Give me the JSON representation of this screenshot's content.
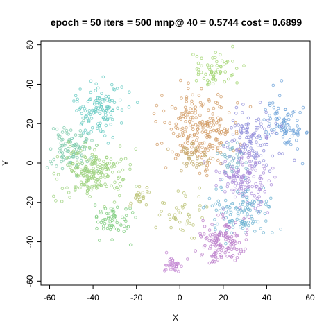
{
  "chart_data": {
    "type": "scatter",
    "title": "epoch = 50 iters = 500 mnp@ 40 = 0.5744 cost = 0.6899",
    "xlabel": "X",
    "ylabel": "Y",
    "xlim": [
      -64,
      60
    ],
    "ylim": [
      -62,
      62
    ],
    "xticks": [
      -60,
      -40,
      -20,
      0,
      20,
      40,
      60
    ],
    "yticks": [
      -60,
      -40,
      -20,
      0,
      20,
      40,
      60
    ],
    "grid": false,
    "legend": "none",
    "marker": "open circle",
    "clusters": [
      {
        "color": "#9ed36a",
        "cx": 15,
        "cy": 47,
        "sx": 6,
        "sy": 5,
        "n": 60
      },
      {
        "color": "#d09860",
        "cx": 9,
        "cy": 17,
        "sx": 8,
        "sy": 9,
        "n": 230
      },
      {
        "color": "#c0a868",
        "cx": 5,
        "cy": 2,
        "sx": 4,
        "sy": 3,
        "n": 40
      },
      {
        "color": "#60c8c0",
        "cx": -37,
        "cy": 27,
        "sx": 6,
        "sy": 7,
        "n": 130
      },
      {
        "color": "#78c8a8",
        "cx": -50,
        "cy": 8,
        "sx": 5,
        "sy": 6,
        "n": 100
      },
      {
        "color": "#9ad07a",
        "cx": -40,
        "cy": -5,
        "sx": 8,
        "sy": 6,
        "n": 200
      },
      {
        "color": "#74c874",
        "cx": -32,
        "cy": -30,
        "sx": 4,
        "sy": 5,
        "n": 60
      },
      {
        "color": "#b8c070",
        "cx": -18,
        "cy": -17,
        "sx": 2,
        "sy": 4,
        "n": 25
      },
      {
        "color": "#b8c070",
        "cx": 0,
        "cy": -25,
        "sx": 6,
        "sy": 6,
        "n": 40
      },
      {
        "color": "#6aa0d8",
        "cx": 48,
        "cy": 20,
        "sx": 5,
        "sy": 7,
        "n": 90
      },
      {
        "color": "#8a88d8",
        "cx": 34,
        "cy": 11,
        "sx": 6,
        "sy": 7,
        "n": 120
      },
      {
        "color": "#a888d8",
        "cx": 30,
        "cy": -8,
        "sx": 6,
        "sy": 8,
        "n": 150
      },
      {
        "color": "#6ab0d0",
        "cx": 28,
        "cy": -25,
        "sx": 7,
        "sy": 7,
        "n": 120
      },
      {
        "color": "#b878c8",
        "cx": 20,
        "cy": -41,
        "sx": 6,
        "sy": 6,
        "n": 130
      },
      {
        "color": "#c080d0",
        "cx": -3,
        "cy": -52,
        "sx": 2,
        "sy": 2,
        "n": 30
      },
      {
        "color": "#7ab8c8",
        "cx": 25,
        "cy": 2,
        "sx": 4,
        "sy": 3,
        "n": 30
      }
    ]
  }
}
